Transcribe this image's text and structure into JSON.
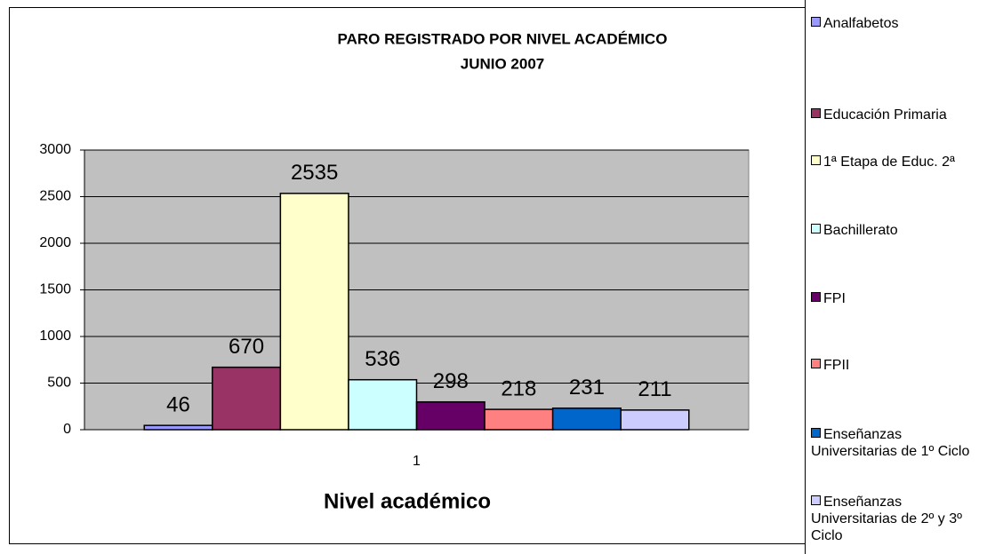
{
  "chart_data": {
    "type": "bar",
    "title": "PARO REGISTRADO POR NIVEL ACADÉMICO",
    "subtitle": "JUNIO 2007",
    "x_label": "Nivel académico",
    "categories": [
      "1"
    ],
    "series": [
      {
        "name": "Analfabetos",
        "color": "#9999ff",
        "values": [
          46
        ]
      },
      {
        "name": "Educación Primaria",
        "color": "#993366",
        "values": [
          670
        ]
      },
      {
        "name": "1ª Etapa de Educ. 2ª",
        "color": "#ffffcc",
        "values": [
          2535
        ]
      },
      {
        "name": "Bachillerato",
        "color": "#ccffff",
        "values": [
          536
        ]
      },
      {
        "name": "FPI",
        "color": "#660066",
        "values": [
          298
        ]
      },
      {
        "name": "FPII",
        "color": "#ff8080",
        "values": [
          218
        ]
      },
      {
        "name": "Enseñanzas Universitarias de 1º Ciclo",
        "color": "#0066cc",
        "values": [
          231
        ]
      },
      {
        "name": "Enseñanzas Universitarias de 2º y 3º Ciclo",
        "color": "#ccccff",
        "values": [
          211
        ]
      }
    ],
    "ylim": [
      0,
      3000
    ],
    "yticks": [
      0,
      500,
      1000,
      1500,
      2000,
      2500,
      3000
    ],
    "grid": true,
    "legend": "right"
  }
}
